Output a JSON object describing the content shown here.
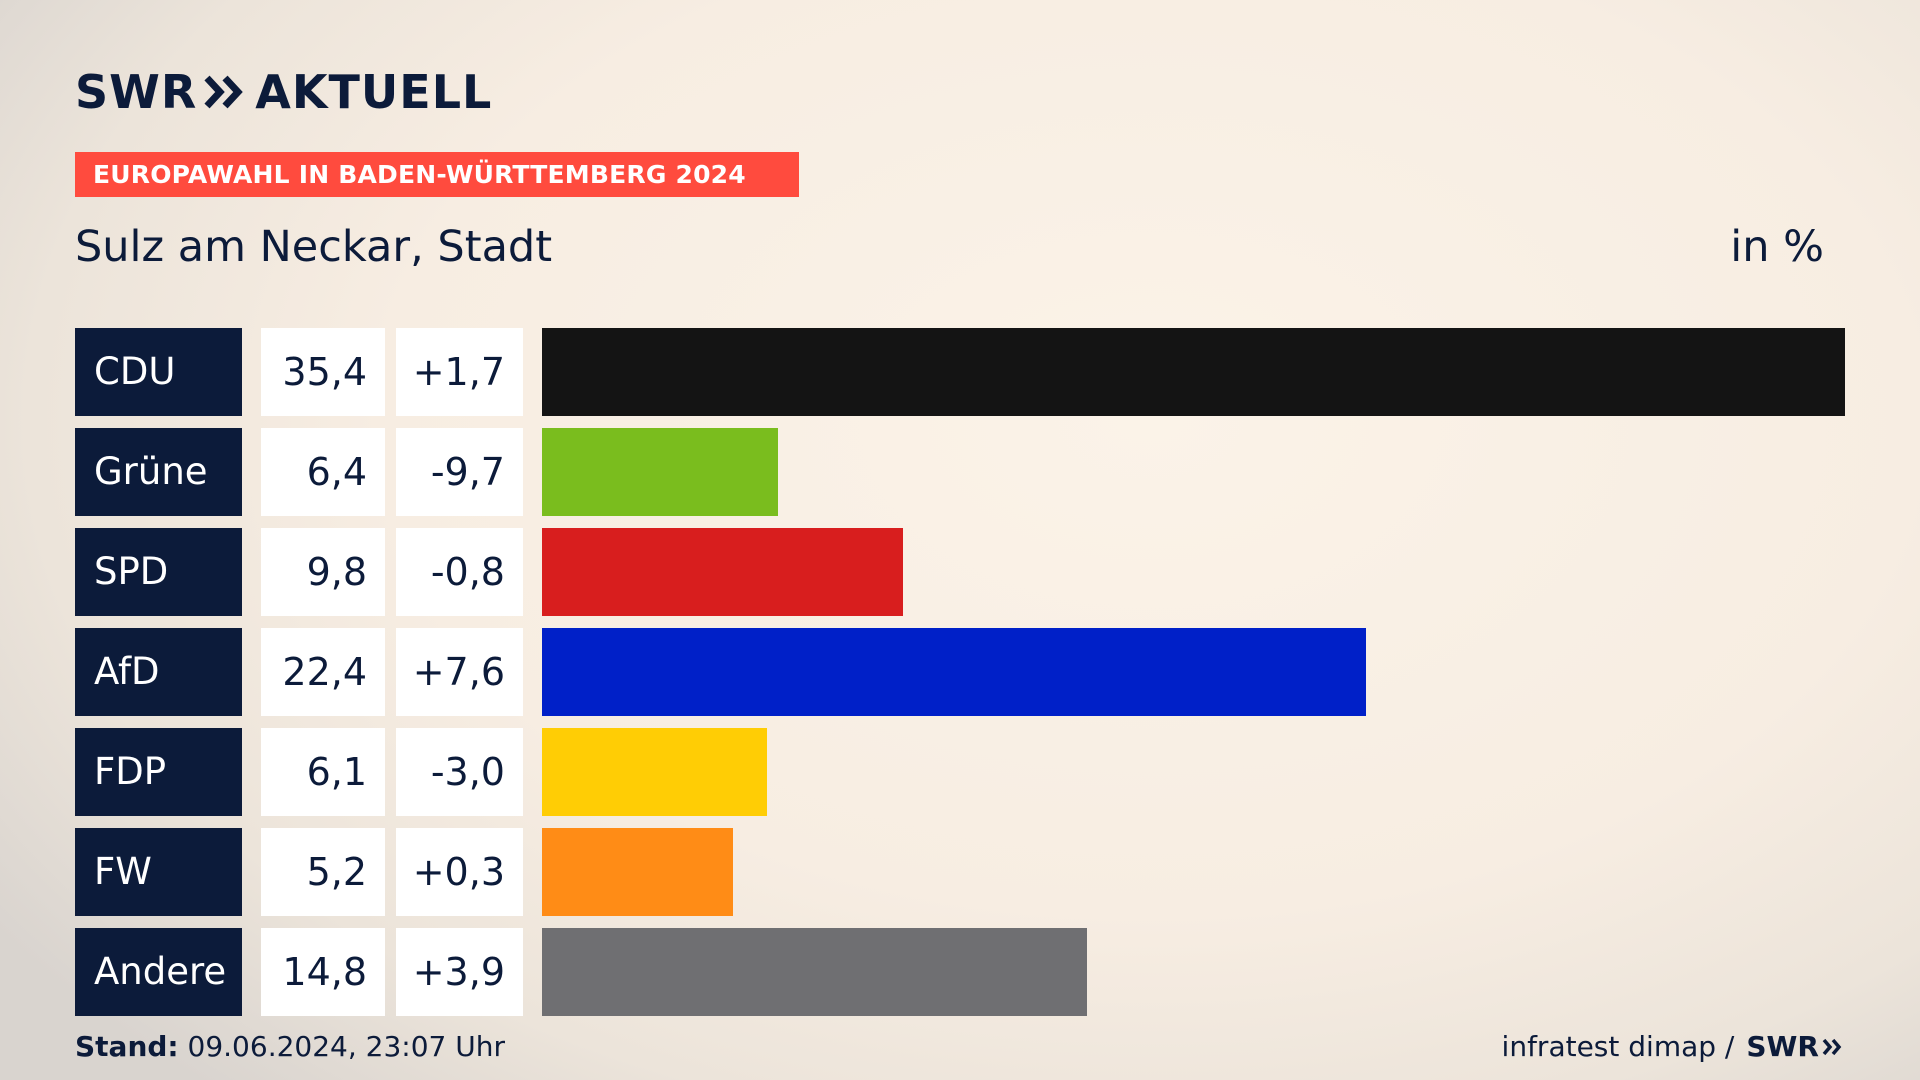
{
  "header": {
    "logo_left": "SWR",
    "logo_right": "AKTUELL",
    "banner": "EUROPAWAHL IN BADEN-WÜRTTEMBERG 2024",
    "subtitle": "Sulz am Neckar, Stadt",
    "unit": "in %"
  },
  "chart_data": {
    "type": "bar",
    "orientation": "horizontal",
    "title": "EUROPAWAHL IN BADEN-WÜRTTEMBERG 2024",
    "subtitle": "Sulz am Neckar, Stadt",
    "unit": "in %",
    "categories": [
      "CDU",
      "Grüne",
      "SPD",
      "AfD",
      "FDP",
      "FW",
      "Andere"
    ],
    "values": [
      35.4,
      6.4,
      9.8,
      22.4,
      6.1,
      5.2,
      14.8
    ],
    "values_label": [
      "35,4",
      "6,4",
      "9,8",
      "22,4",
      "6,1",
      "5,2",
      "14,8"
    ],
    "diffs": [
      1.7,
      -9.7,
      -0.8,
      7.6,
      -3.0,
      0.3,
      3.9
    ],
    "diffs_label": [
      "+1,7",
      "-9,7",
      "-0,8",
      "+7,6",
      "-3,0",
      "+0,3",
      "+3,9"
    ],
    "colors": [
      "#141414",
      "#7abd1e",
      "#d81e1e",
      "#0020c8",
      "#ffcd05",
      "#ff8c16",
      "#6f6f72"
    ],
    "max": 35.4
  },
  "footer": {
    "stand_label": "Stand:",
    "stand_value": "09.06.2024, 23:07 Uhr",
    "source": "infratest dimap /",
    "source_logo": "SWR"
  }
}
